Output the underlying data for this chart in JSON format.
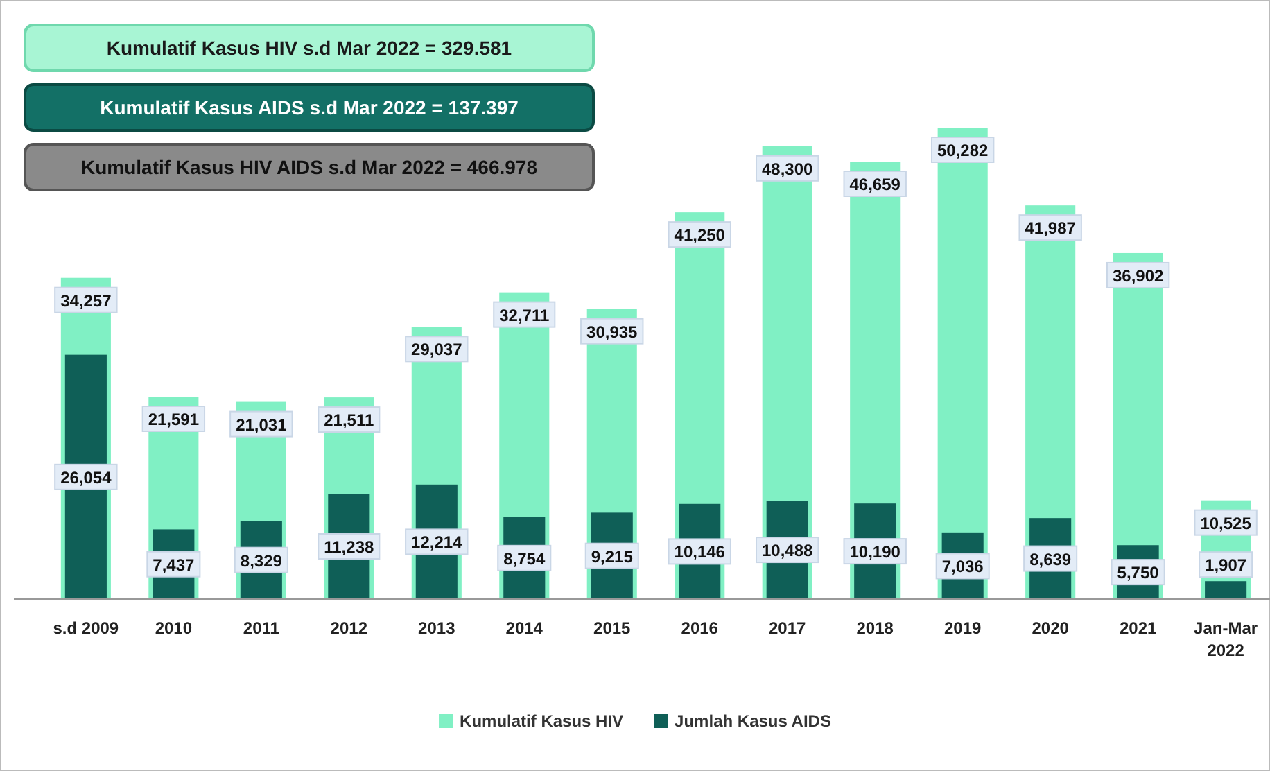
{
  "chart_data": {
    "type": "bar",
    "annotations": [
      "Kumulatif Kasus HIV s.d Mar 2022 = 329.581",
      "Kumulatif Kasus AIDS s.d Mar 2022 = 137.397",
      "Kumulatif Kasus HIV AIDS s.d Mar 2022 = 466.978"
    ],
    "categories": [
      "s.d 2009",
      "2010",
      "2011",
      "2012",
      "2013",
      "2014",
      "2015",
      "2016",
      "2017",
      "2018",
      "2019",
      "2020",
      "2021",
      "Jan-Mar 2022"
    ],
    "series": [
      {
        "name": "Kumulatif Kasus HIV",
        "color": "#80f0c4",
        "values": [
          34257,
          21591,
          21031,
          21511,
          29037,
          32711,
          30935,
          41250,
          48300,
          46659,
          50282,
          41987,
          36902,
          10525
        ],
        "value_labels": [
          "34,257",
          "21,591",
          "21,031",
          "21,511",
          "29,037",
          "32,711",
          "30,935",
          "41,250",
          "48,300",
          "46,659",
          "50,282",
          "41,987",
          "36,902",
          "10,525"
        ]
      },
      {
        "name": "Jumlah Kasus AIDS",
        "color": "#0f5f57",
        "values": [
          26054,
          7437,
          8329,
          11238,
          12214,
          8754,
          9215,
          10146,
          10488,
          10190,
          7036,
          8639,
          5750,
          1907
        ],
        "value_labels": [
          "26,054",
          "7,437",
          "8,329",
          "11,238",
          "12,214",
          "8,754",
          "9,215",
          "10,146",
          "10,488",
          "10,190",
          "7,036",
          "8,639",
          "5,750",
          "1,907"
        ]
      }
    ],
    "legend": "bottom"
  }
}
